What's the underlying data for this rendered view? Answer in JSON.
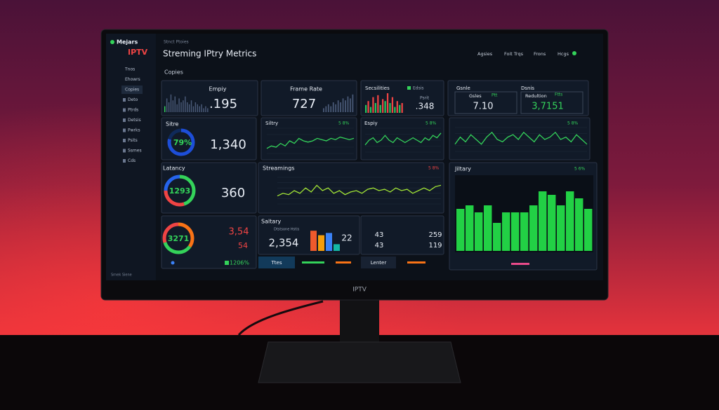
{
  "sidebar": {
    "logo": "Mejars",
    "brand": "IPTV",
    "items": [
      "Tnos",
      "Ehowrs",
      "Copies",
      "Deto",
      "Ptrds",
      "Detsis",
      "Pwrks",
      "Psits",
      "Ssmes",
      "Cds"
    ],
    "footer": "Srnek Siene"
  },
  "header": {
    "breadcrumb": "Stnct Ptoies",
    "title": "Streming IPtry Metrics",
    "nav": [
      "Agsies",
      "Foit Trqs",
      "Frons",
      "Hcgs"
    ]
  },
  "section": "Copies",
  "empty": {
    "label": "Empiy",
    "value": ".195",
    "bars": [
      3,
      7,
      5,
      9,
      6,
      8,
      4,
      7,
      5,
      6,
      8,
      5,
      4,
      6,
      3,
      5,
      4,
      3,
      4,
      2,
      3,
      2
    ]
  },
  "frame_rate": {
    "label": "Frame Rate",
    "value": "727",
    "bars": [
      2,
      3,
      4,
      3,
      5,
      4,
      6,
      5,
      7,
      6,
      8,
      7,
      9
    ]
  },
  "secsilities": {
    "label": "Secsilities",
    "legend": "Edsis",
    "sub": "Psrit",
    "value": ".348",
    "colors": [
      "#22c55e",
      "#ef4444"
    ],
    "bars": [
      4,
      6,
      3,
      8,
      5,
      9,
      4,
      7,
      6,
      10,
      5,
      8,
      3,
      6,
      4,
      5
    ]
  },
  "gsnle": {
    "label": "Gsnle",
    "sub": "Gsles",
    "tag": "Ptt",
    "value": "7.10"
  },
  "dsnis": {
    "label": "Dsnis",
    "sub": "Redultion",
    "tag": "Ftts",
    "value": "3,7151"
  },
  "sitre": {
    "label": "Sitre",
    "gauge": "79%",
    "value": "1,340"
  },
  "siltry": {
    "label": "Siltry",
    "tag": "5 8%",
    "values": [
      2,
      3,
      2.5,
      4,
      3,
      5,
      4,
      6,
      5,
      4.5,
      5,
      6,
      5.5,
      5,
      6,
      5.5,
      6.5,
      6,
      5.5,
      6
    ]
  },
  "espiy": {
    "label": "Espiy",
    "tag": "5 8%",
    "values": [
      3,
      5,
      6,
      4,
      5,
      7,
      5,
      4,
      6,
      5,
      4,
      5,
      6,
      5,
      4,
      6,
      5,
      7,
      6,
      8
    ]
  },
  "trend": {
    "tag": "5 8%",
    "values": [
      3,
      6,
      4,
      7,
      5,
      3,
      6,
      8,
      5,
      4,
      6,
      7,
      5,
      8,
      6,
      4,
      7,
      5,
      6,
      8,
      5,
      6,
      4,
      7,
      5,
      3
    ]
  },
  "latancy": {
    "label": "Latancy",
    "gauge": "1293",
    "value": "360"
  },
  "streamings": {
    "label": "Streamings",
    "tag": "5 8%",
    "values": [
      3,
      4,
      3.5,
      5,
      4,
      6,
      4.5,
      7,
      5,
      6,
      4,
      5,
      3.5,
      4.5,
      5,
      4,
      5.5,
      6,
      5,
      5.5,
      4.5,
      6,
      5,
      5.5,
      4,
      5,
      6,
      5,
      6.5,
      7
    ]
  },
  "jiltary": {
    "label": "Jiltary",
    "tag": "5 6%",
    "values": [
      6,
      6.5,
      5.5,
      6.5,
      4,
      5.5,
      5.5,
      5.5,
      6.5,
      8.5,
      8,
      6.5,
      8.5,
      7.5,
      6
    ]
  },
  "ring": {
    "gauge": "3271",
    "value_a": "3,54",
    "value_b": "54",
    "badge": "1206%"
  },
  "saltary": {
    "label": "Saltary",
    "legend": "Dtstsone Hstis",
    "value": "2,354",
    "count": "22",
    "bars": [
      {
        "color": "#ef5a2c",
        "value": 9
      },
      {
        "color": "#f59e0b",
        "value": 7
      },
      {
        "color": "#3b82f6",
        "value": 8
      },
      {
        "color": "#14b8a6",
        "value": 3
      }
    ]
  },
  "pairs": [
    [
      "43",
      "259"
    ],
    [
      "43",
      "119"
    ]
  ],
  "footer_tabs": [
    "Ttes",
    "Lenter"
  ],
  "monitor_label": "IPTV"
}
